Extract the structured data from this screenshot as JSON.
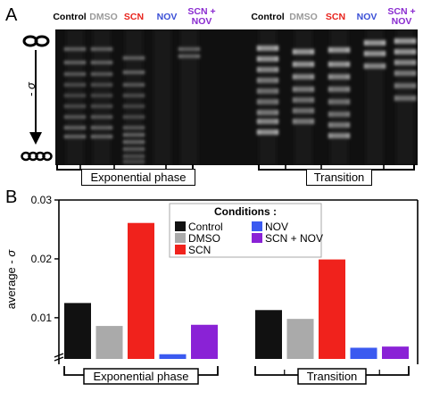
{
  "panel_a": {
    "letter": "A",
    "sigma_label": "- σ",
    "lanes": [
      {
        "label": "Control",
        "color": "#000000"
      },
      {
        "label": "DMSO",
        "color": "#9a9a9a"
      },
      {
        "label": "SCN",
        "color": "#e8231c"
      },
      {
        "label": "NOV",
        "color": "#3a4fd6"
      },
      {
        "label": "SCN +\nNOV",
        "color": "#8a2bd0"
      }
    ],
    "groups": [
      "Exponential phase",
      "Transition"
    ]
  },
  "panel_b": {
    "letter": "B"
  },
  "chart_data": {
    "type": "bar",
    "ylabel": "average - σ",
    "ylim": [
      0.003,
      0.03
    ],
    "yticks": [
      0.01,
      0.02,
      0.03
    ],
    "ytick_labels": [
      "0.01",
      "0.02",
      "0.03"
    ],
    "axis_break": true,
    "grid": false,
    "legend_position": "top-center",
    "legend_title": "Conditions :",
    "categories": [
      "Exponential phase",
      "Transition"
    ],
    "series": [
      {
        "name": "Control",
        "color": "#111111",
        "values": [
          0.0125,
          0.0113
        ]
      },
      {
        "name": "DMSO",
        "color": "#aaaaaa",
        "values": [
          0.0086,
          0.0098
        ]
      },
      {
        "name": "SCN",
        "color": "#f0221c",
        "values": [
          0.0261,
          0.0199
        ]
      },
      {
        "name": "NOV",
        "color": "#3b5af0",
        "values": [
          0.0038,
          0.0049
        ]
      },
      {
        "name": "SCN + NOV",
        "color": "#8a22d6",
        "values": [
          0.0088,
          0.0051
        ]
      }
    ]
  }
}
